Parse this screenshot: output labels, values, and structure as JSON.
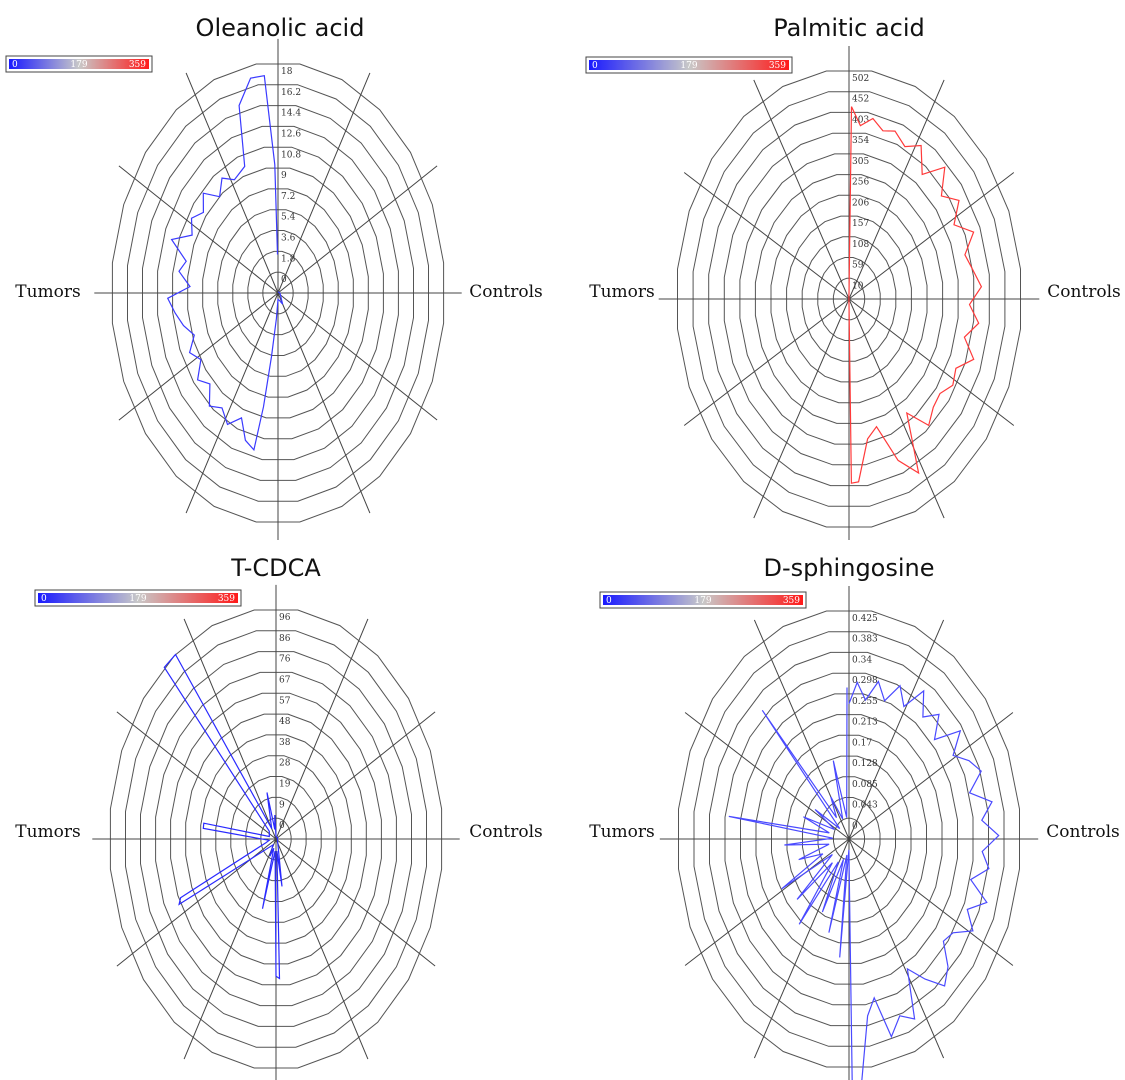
{
  "chart_data": [
    {
      "type": "radar",
      "title": "Oleanolic acid",
      "left_label": "Tumors",
      "right_label": "Controls",
      "colorbar": {
        "labels": [
          "0",
          "179",
          "359"
        ],
        "low_color": "#1a1aff",
        "mid_color": "#c8c8c8",
        "high_color": "#ff1a1a"
      },
      "series_color": "#3a3aff",
      "r_ticks": [
        "18",
        "16.2",
        "14.4",
        "12.6",
        "10.8",
        "9",
        "7.2",
        "5.4",
        "3.6",
        "1.8",
        "0"
      ],
      "rmax": 18,
      "points": [
        {
          "angle": 0,
          "r": 0.1
        },
        {
          "angle": 90,
          "r": 0.2
        },
        {
          "angle": 120,
          "r": 0.3
        },
        {
          "angle": 150,
          "r": 1.0
        },
        {
          "angle": 165,
          "r": 0.6
        },
        {
          "angle": 180,
          "r": 0.5
        },
        {
          "angle": 185,
          "r": 2.0
        },
        {
          "angle": 188,
          "r": 5.0
        },
        {
          "angle": 190,
          "r": 9.0
        },
        {
          "angle": 192,
          "r": 12.5
        },
        {
          "angle": 197,
          "r": 12.0
        },
        {
          "angle": 202,
          "r": 10.5
        },
        {
          "angle": 208,
          "r": 11.6
        },
        {
          "angle": 214,
          "r": 10.8
        },
        {
          "angle": 220,
          "r": 11.5
        },
        {
          "angle": 226,
          "r": 10.2
        },
        {
          "angle": 232,
          "r": 11.0
        },
        {
          "angle": 238,
          "r": 9.8
        },
        {
          "angle": 244,
          "r": 10.6
        },
        {
          "angle": 250,
          "r": 9.6
        },
        {
          "angle": 256,
          "r": 10.5
        },
        {
          "angle": 262,
          "r": 11.2
        },
        {
          "angle": 268,
          "r": 11.9
        },
        {
          "angle": 273,
          "r": 9.5
        },
        {
          "angle": 279,
          "r": 10.8
        },
        {
          "angle": 284,
          "r": 10.2
        },
        {
          "angle": 290,
          "r": 12.2
        },
        {
          "angle": 296,
          "r": 10.3
        },
        {
          "angle": 302,
          "r": 11.0
        },
        {
          "angle": 308,
          "r": 10.2
        },
        {
          "angle": 314,
          "r": 11.2
        },
        {
          "angle": 320,
          "r": 9.8
        },
        {
          "angle": 326,
          "r": 10.8
        },
        {
          "angle": 332,
          "r": 10.0
        },
        {
          "angle": 340,
          "r": 10.5
        },
        {
          "angle": 344,
          "r": 15.2
        },
        {
          "angle": 350,
          "r": 17.0
        },
        {
          "angle": 355,
          "r": 17.0
        },
        {
          "angle": 358,
          "r": 10.0
        },
        {
          "angle": 359,
          "r": 3.0
        }
      ]
    },
    {
      "type": "radar",
      "title": "Palmitic acid",
      "left_label": "Tumors",
      "right_label": "Controls",
      "colorbar": {
        "labels": [
          "0",
          "179",
          "359"
        ],
        "low_color": "#1a1aff",
        "mid_color": "#c8c8c8",
        "high_color": "#ff1a1a"
      },
      "series_color": "#ff3a3a",
      "r_ticks": [
        "502",
        "452",
        "403",
        "354",
        "305",
        "256",
        "206",
        "157",
        "108",
        "59",
        "10"
      ],
      "rmax": 502,
      "points": [
        {
          "angle": 0,
          "r": 10
        },
        {
          "angle": 1,
          "r": 420
        },
        {
          "angle": 5,
          "r": 380
        },
        {
          "angle": 10,
          "r": 400
        },
        {
          "angle": 15,
          "r": 380
        },
        {
          "angle": 20,
          "r": 390
        },
        {
          "angle": 26,
          "r": 370
        },
        {
          "angle": 32,
          "r": 395
        },
        {
          "angle": 38,
          "r": 345
        },
        {
          "angle": 44,
          "r": 400
        },
        {
          "angle": 50,
          "r": 350
        },
        {
          "angle": 56,
          "r": 385
        },
        {
          "angle": 62,
          "r": 345
        },
        {
          "angle": 68,
          "r": 390
        },
        {
          "angle": 74,
          "r": 350
        },
        {
          "angle": 80,
          "r": 365
        },
        {
          "angle": 86,
          "r": 385
        },
        {
          "angle": 92,
          "r": 350
        },
        {
          "angle": 98,
          "r": 380
        },
        {
          "angle": 104,
          "r": 345
        },
        {
          "angle": 110,
          "r": 385
        },
        {
          "angle": 116,
          "r": 345
        },
        {
          "angle": 122,
          "r": 355
        },
        {
          "angle": 128,
          "r": 335
        },
        {
          "angle": 134,
          "r": 340
        },
        {
          "angle": 140,
          "r": 360
        },
        {
          "angle": 146,
          "r": 300
        },
        {
          "angle": 152,
          "r": 430
        },
        {
          "angle": 158,
          "r": 380
        },
        {
          "angle": 164,
          "r": 290
        },
        {
          "angle": 170,
          "r": 310
        },
        {
          "angle": 176,
          "r": 400
        },
        {
          "angle": 179,
          "r": 402
        },
        {
          "angle": 180,
          "r": 10
        },
        {
          "angle": 359,
          "r": 10
        }
      ]
    },
    {
      "type": "radar",
      "title": "T-CDCA",
      "left_label": "Tumors",
      "right_label": "Controls",
      "colorbar": {
        "labels": [
          "0",
          "179",
          "359"
        ],
        "low_color": "#1a1aff",
        "mid_color": "#c8c8c8",
        "high_color": "#ff1a1a"
      },
      "series_color": "#2a2aff",
      "r_ticks": [
        "96",
        "86",
        "76",
        "67",
        "57",
        "48",
        "38",
        "28",
        "19",
        "9",
        "0"
      ],
      "rmax": 96,
      "points": [
        {
          "angle": 0,
          "r": 1
        },
        {
          "angle": 60,
          "r": 1
        },
        {
          "angle": 120,
          "r": 1
        },
        {
          "angle": 170,
          "r": 20
        },
        {
          "angle": 174,
          "r": 5
        },
        {
          "angle": 178,
          "r": 58
        },
        {
          "angle": 180,
          "r": 57
        },
        {
          "angle": 186,
          "r": 5
        },
        {
          "angle": 195,
          "r": 30
        },
        {
          "angle": 198,
          "r": 4
        },
        {
          "angle": 206,
          "r": 8
        },
        {
          "angle": 215,
          "r": 3
        },
        {
          "angle": 244,
          "r": 62
        },
        {
          "angle": 246,
          "r": 60
        },
        {
          "angle": 255,
          "r": 6
        },
        {
          "angle": 262,
          "r": 4
        },
        {
          "angle": 276,
          "r": 42
        },
        {
          "angle": 279,
          "r": 42
        },
        {
          "angle": 285,
          "r": 4
        },
        {
          "angle": 310,
          "r": 5
        },
        {
          "angle": 318,
          "r": 96
        },
        {
          "angle": 323,
          "r": 96
        },
        {
          "angle": 330,
          "r": 5
        },
        {
          "angle": 345,
          "r": 20
        },
        {
          "angle": 350,
          "r": 4
        },
        {
          "angle": 356,
          "r": 10
        },
        {
          "angle": 359,
          "r": 1
        }
      ]
    },
    {
      "type": "radar",
      "title": "D-sphingosine",
      "left_label": "Tumors",
      "right_label": "Controls",
      "colorbar": {
        "labels": [
          "0",
          "179",
          "359"
        ],
        "low_color": "#1a1aff",
        "mid_color": "#c8c8c8",
        "high_color": "#ff1a1a"
      },
      "series_color": "#4a4aff",
      "r_ticks": [
        "0.425",
        "0.383",
        "0.34",
        "0.298",
        "0.255",
        "0.213",
        "0.17",
        "0.128",
        "0.085",
        "0.043",
        "0"
      ],
      "rmax": 0.425,
      "points": [
        {
          "angle": 0,
          "r": 0.25
        },
        {
          "angle": 4,
          "r": 0.29
        },
        {
          "angle": 9,
          "r": 0.26
        },
        {
          "angle": 14,
          "r": 0.3
        },
        {
          "angle": 19,
          "r": 0.27
        },
        {
          "angle": 24,
          "r": 0.31
        },
        {
          "angle": 29,
          "r": 0.28
        },
        {
          "angle": 34,
          "r": 0.33
        },
        {
          "angle": 39,
          "r": 0.29
        },
        {
          "angle": 44,
          "r": 0.32
        },
        {
          "angle": 49,
          "r": 0.28
        },
        {
          "angle": 54,
          "r": 0.34
        },
        {
          "angle": 59,
          "r": 0.3
        },
        {
          "angle": 64,
          "r": 0.33
        },
        {
          "angle": 69,
          "r": 0.35
        },
        {
          "angle": 74,
          "r": 0.31
        },
        {
          "angle": 79,
          "r": 0.36
        },
        {
          "angle": 84,
          "r": 0.33
        },
        {
          "angle": 89,
          "r": 0.37
        },
        {
          "angle": 94,
          "r": 0.33
        },
        {
          "angle": 99,
          "r": 0.35
        },
        {
          "angle": 104,
          "r": 0.31
        },
        {
          "angle": 109,
          "r": 0.36
        },
        {
          "angle": 114,
          "r": 0.32
        },
        {
          "angle": 119,
          "r": 0.35
        },
        {
          "angle": 124,
          "r": 0.31
        },
        {
          "angle": 129,
          "r": 0.3
        },
        {
          "angle": 134,
          "r": 0.34
        },
        {
          "angle": 139,
          "r": 0.36
        },
        {
          "angle": 144,
          "r": 0.32
        },
        {
          "angle": 149,
          "r": 0.28
        },
        {
          "angle": 154,
          "r": 0.37
        },
        {
          "angle": 159,
          "r": 0.35
        },
        {
          "angle": 164,
          "r": 0.38
        },
        {
          "angle": 168,
          "r": 0.3
        },
        {
          "angle": 172,
          "r": 0.33
        },
        {
          "angle": 176,
          "r": 0.45
        },
        {
          "angle": 179,
          "r": 0.45
        },
        {
          "angle": 181,
          "r": 0.02
        },
        {
          "angle": 186,
          "r": 0.22
        },
        {
          "angle": 190,
          "r": 0.03
        },
        {
          "angle": 196,
          "r": 0.18
        },
        {
          "angle": 200,
          "r": 0.04
        },
        {
          "angle": 206,
          "r": 0.15
        },
        {
          "angle": 212,
          "r": 0.05
        },
        {
          "angle": 218,
          "r": 0.2
        },
        {
          "angle": 223,
          "r": 0.06
        },
        {
          "angle": 229,
          "r": 0.17
        },
        {
          "angle": 235,
          "r": 0.05
        },
        {
          "angle": 241,
          "r": 0.19
        },
        {
          "angle": 247,
          "r": 0.07
        },
        {
          "angle": 253,
          "r": 0.13
        },
        {
          "angle": 259,
          "r": 0.05
        },
        {
          "angle": 266,
          "r": 0.16
        },
        {
          "angle": 272,
          "r": 0.04
        },
        {
          "angle": 278,
          "r": 0.3
        },
        {
          "angle": 283,
          "r": 0.05
        },
        {
          "angle": 290,
          "r": 0.12
        },
        {
          "angle": 296,
          "r": 0.04
        },
        {
          "angle": 303,
          "r": 0.1
        },
        {
          "angle": 310,
          "r": 0.03
        },
        {
          "angle": 318,
          "r": 0.32
        },
        {
          "angle": 322,
          "r": 0.05
        },
        {
          "angle": 330,
          "r": 0.09
        },
        {
          "angle": 337,
          "r": 0.04
        },
        {
          "angle": 345,
          "r": 0.15
        },
        {
          "angle": 352,
          "r": 0.04
        },
        {
          "angle": 359,
          "r": 0.28
        }
      ]
    }
  ]
}
